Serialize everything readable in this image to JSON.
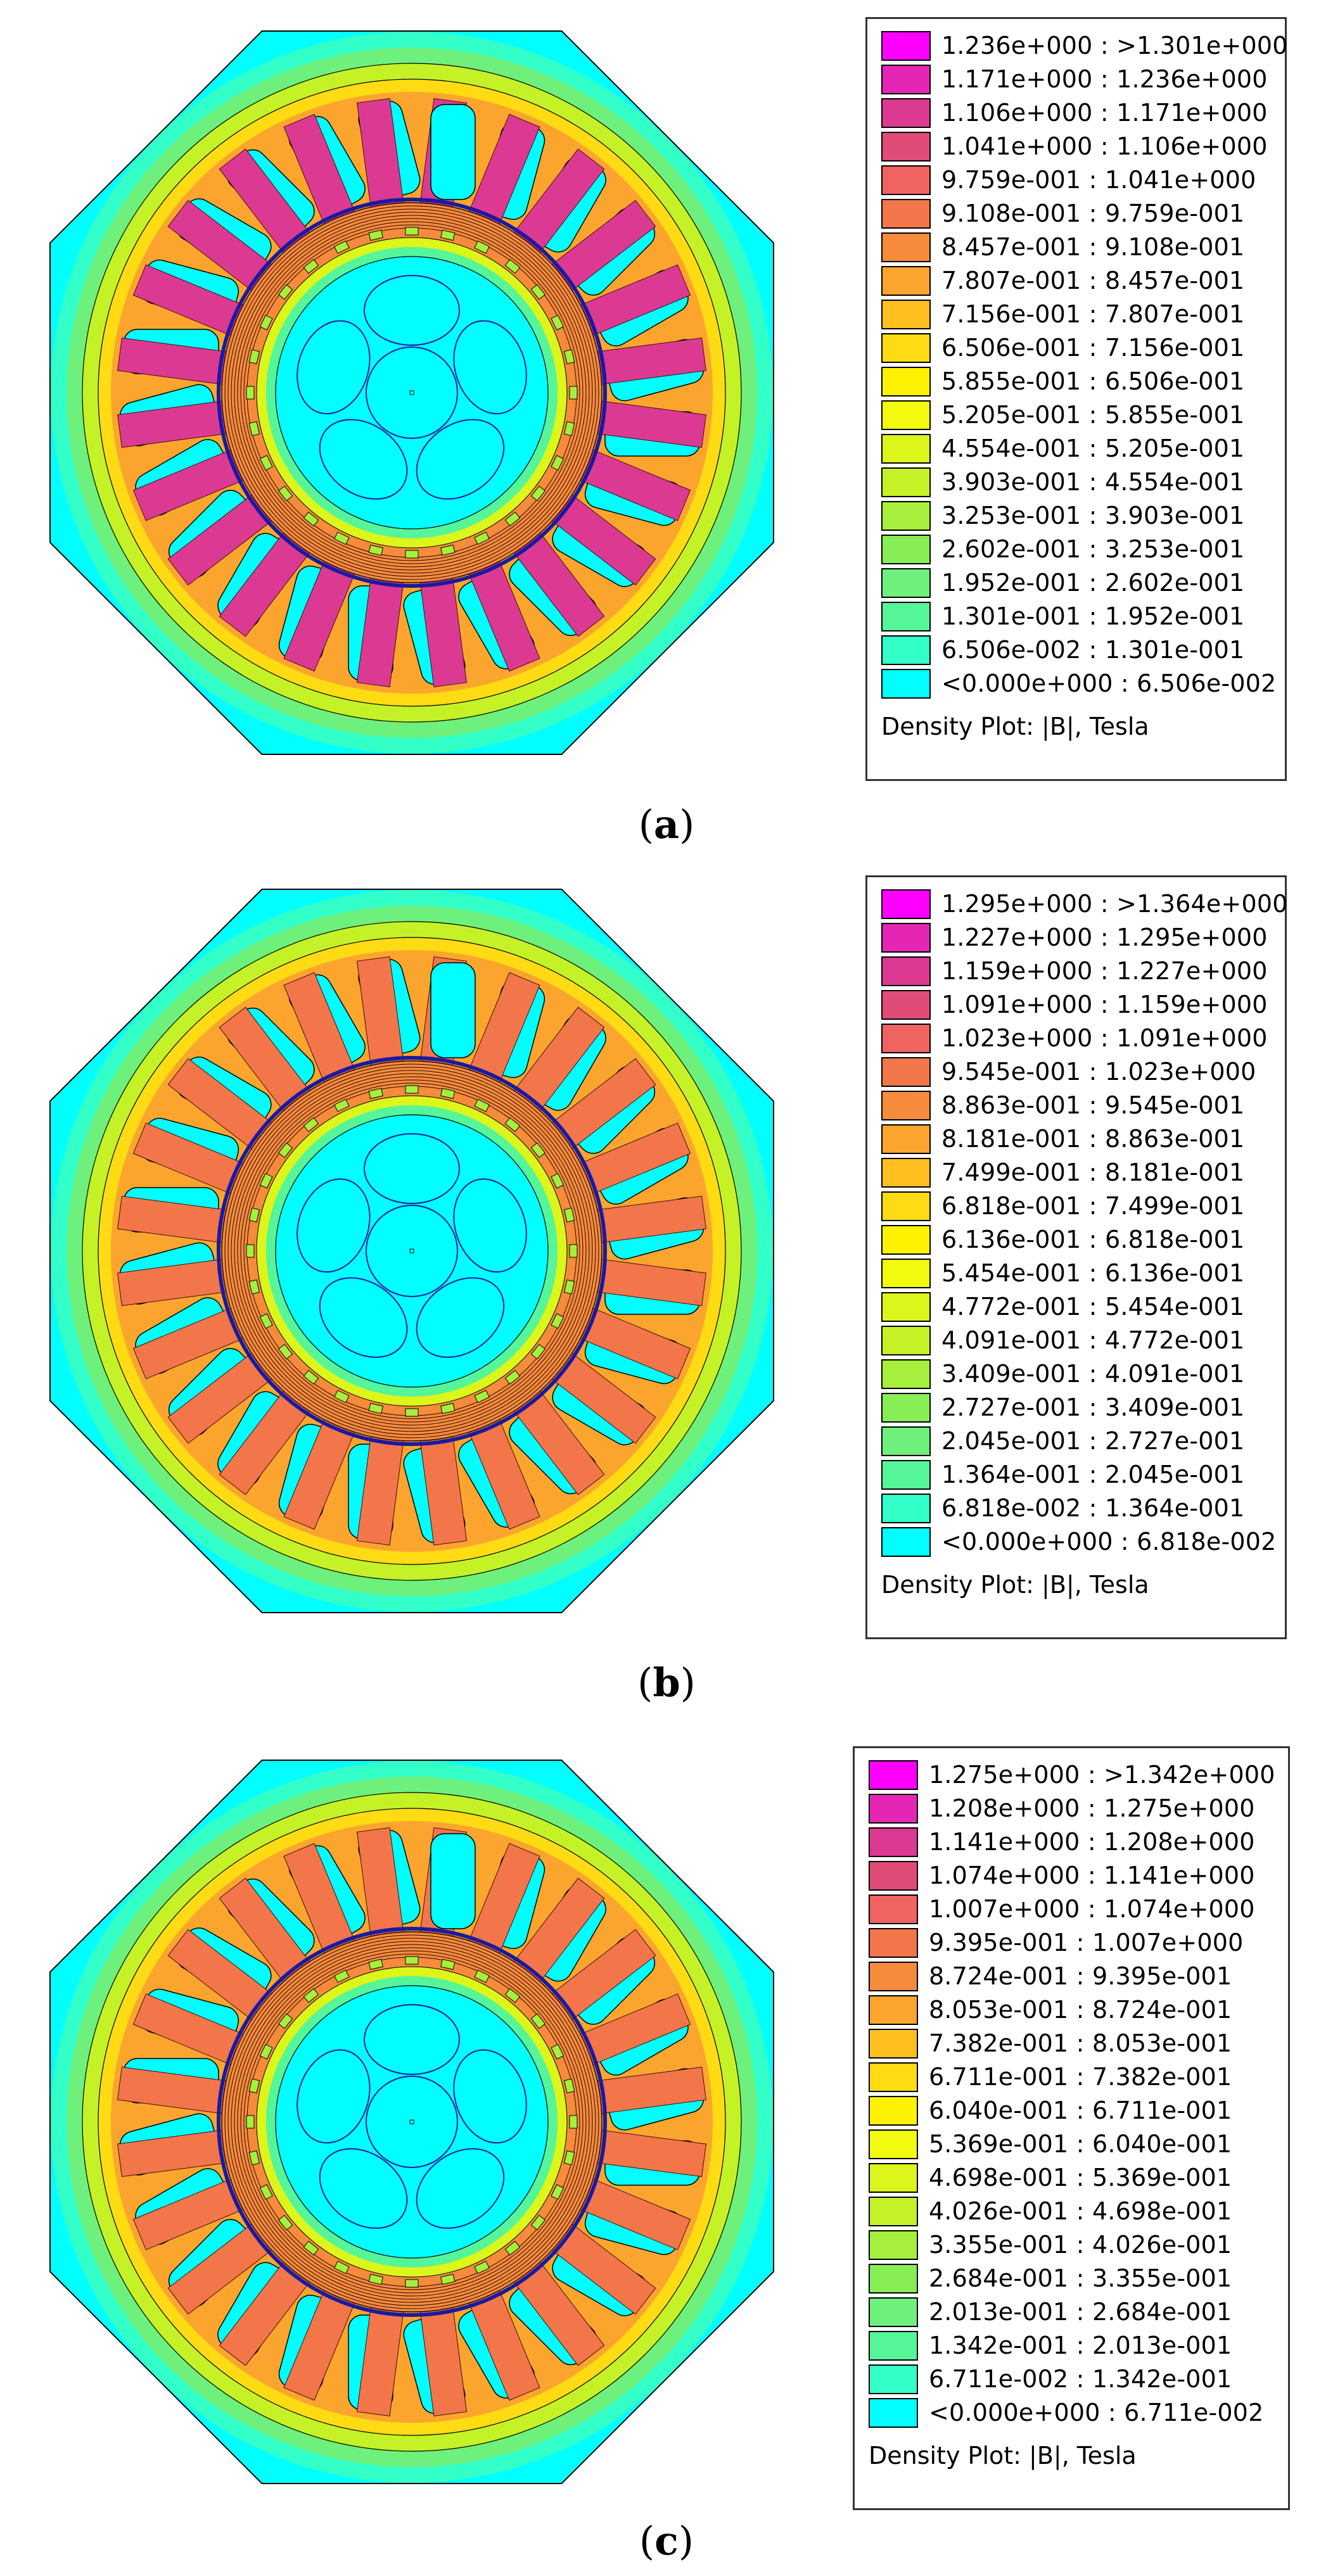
{
  "palette": [
    "#00ffff",
    "#33ffc8",
    "#55f59a",
    "#6ef07c",
    "#88ee55",
    "#a6ef3c",
    "#c4f227",
    "#dcf51a",
    "#f2fb0d",
    "#fff200",
    "#ffdb14",
    "#ffc01f",
    "#fba52e",
    "#f68b3c",
    "#f2764a",
    "#ef6360",
    "#e14b78",
    "#dc3a92",
    "#e526b5",
    "#ff00ff"
  ],
  "panels": [
    {
      "label": "a",
      "legend": [
        "1.236e+000 : >1.301e+000",
        "1.171e+000 : 1.236e+000",
        "1.106e+000 : 1.171e+000",
        "1.041e+000 : 1.106e+000",
        "9.759e-001 : 1.041e+000",
        "9.108e-001 : 9.759e-001",
        "8.457e-001 : 9.108e-001",
        "7.807e-001 : 8.457e-001",
        "7.156e-001 : 7.807e-001",
        "6.506e-001 : 7.156e-001",
        "5.855e-001 : 6.506e-001",
        "5.205e-001 : 5.855e-001",
        "4.554e-001 : 5.205e-001",
        "3.903e-001 : 4.554e-001",
        "3.253e-001 : 3.903e-001",
        "2.602e-001 : 3.253e-001",
        "1.952e-001 : 2.602e-001",
        "1.301e-001 : 1.952e-001",
        "6.506e-002 : 1.301e-001",
        "<0.000e+000 : 6.506e-002"
      ],
      "footer": "Density Plot: |B|, Tesla"
    },
    {
      "label": "b",
      "legend": [
        "1.295e+000 : >1.364e+000",
        "1.227e+000 : 1.295e+000",
        "1.159e+000 : 1.227e+000",
        "1.091e+000 : 1.159e+000",
        "1.023e+000 : 1.091e+000",
        "9.545e-001 : 1.023e+000",
        "8.863e-001 : 9.545e-001",
        "8.181e-001 : 8.863e-001",
        "7.499e-001 : 8.181e-001",
        "6.818e-001 : 7.499e-001",
        "6.136e-001 : 6.818e-001",
        "5.454e-001 : 6.136e-001",
        "4.772e-001 : 5.454e-001",
        "4.091e-001 : 4.772e-001",
        "3.409e-001 : 4.091e-001",
        "2.727e-001 : 3.409e-001",
        "2.045e-001 : 2.727e-001",
        "1.364e-001 : 2.045e-001",
        "6.818e-002 : 1.364e-001",
        "<0.000e+000 : 6.818e-002"
      ],
      "footer": "Density Plot: |B|, Tesla"
    },
    {
      "label": "c",
      "legend": [
        "1.275e+000 : >1.342e+000",
        "1.208e+000 : 1.275e+000",
        "1.141e+000 : 1.208e+000",
        "1.074e+000 : 1.141e+000",
        "1.007e+000 : 1.074e+000",
        "9.395e-001 : 1.007e+000",
        "8.724e-001 : 9.395e-001",
        "8.053e-001 : 8.724e-001",
        "7.382e-001 : 8.053e-001",
        "6.711e-001 : 7.382e-001",
        "6.040e-001 : 6.711e-001",
        "5.369e-001 : 6.040e-001",
        "4.698e-001 : 5.369e-001",
        "4.026e-001 : 4.698e-001",
        "3.355e-001 : 4.026e-001",
        "2.684e-001 : 3.355e-001",
        "2.013e-001 : 2.684e-001",
        "1.342e-001 : 2.013e-001",
        "6.711e-002 : 1.342e-001",
        "<0.000e+000 : 6.711e-002"
      ],
      "footer": "Density Plot: |B|, Tesla"
    }
  ]
}
